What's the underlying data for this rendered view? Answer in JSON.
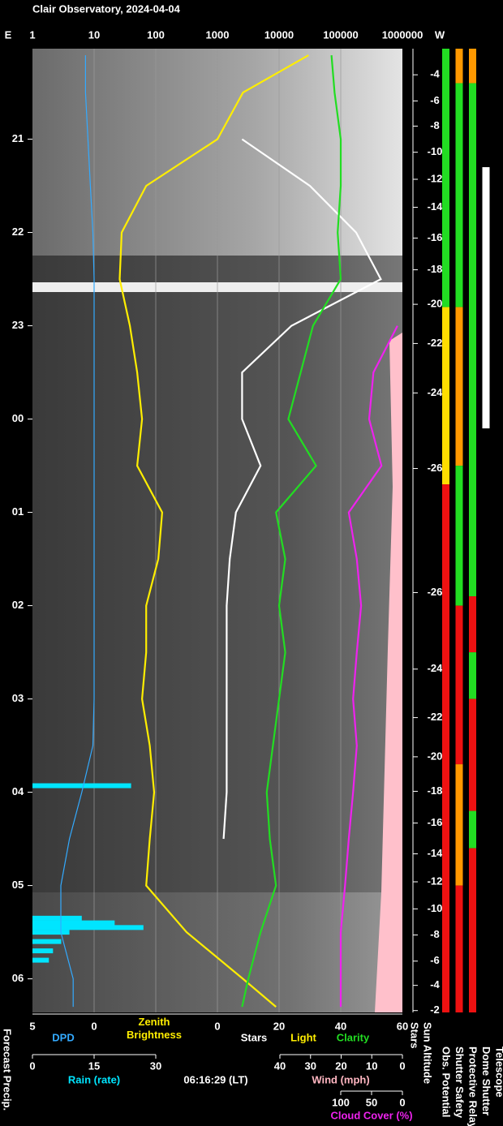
{
  "chart_data": {
    "type": "line",
    "title": "Clair Observatory, 2024-04-04",
    "east_label": "E",
    "west_label": "W",
    "timestamp": "06:16:29 (LT)",
    "forecast_label": "Forecast Precip.",
    "ylim": [
      20.03,
      30.36
    ],
    "yticks": [
      21,
      22,
      23,
      {
        "value": 24,
        "label": "00"
      },
      {
        "value": 25,
        "label": "01"
      },
      {
        "value": 26,
        "label": "02"
      },
      {
        "value": 27,
        "label": "03"
      },
      {
        "value": 28,
        "label": "04"
      },
      {
        "value": 29,
        "label": "05"
      },
      {
        "value": 30,
        "label": "06"
      }
    ],
    "times": [
      20.1,
      20.5,
      21,
      21.5,
      22,
      22.5,
      23,
      23.5,
      24,
      24.5,
      25,
      25.5,
      26,
      26.5,
      27,
      27.5,
      28,
      28.5,
      29,
      29.5,
      30,
      30.3
    ],
    "axes": {
      "brightness": {
        "lim": [
          1,
          1000000
        ],
        "ticks": [
          1,
          10,
          100,
          1000,
          10000,
          100000,
          1000000
        ],
        "log": true,
        "grid": true
      },
      "dpd": {
        "label": "DPD",
        "color": "#33aaff",
        "lim": [
          5,
          0
        ],
        "ticks": [
          5,
          0
        ]
      },
      "zenith": {
        "label": "Zenith Brightness",
        "color": "#ffee00"
      },
      "counts": {
        "lim": [
          0,
          60
        ],
        "ticks": [
          0,
          20,
          40,
          60
        ],
        "labels": [
          {
            "text": "Stars",
            "color": "#ffffff"
          },
          {
            "text": "Light",
            "color": "#ffee00"
          },
          {
            "text": "Clarity",
            "color": "#22dd22"
          }
        ]
      },
      "rain": {
        "label": "Rain (rate)",
        "color": "#00e5ff",
        "lim": [
          0,
          30
        ],
        "ticks": [
          0,
          15,
          30
        ]
      },
      "wind": {
        "label": "Wind (mph)",
        "color": "#ffb6c1",
        "lim": [
          40,
          0
        ],
        "ticks": [
          40,
          30,
          20,
          10,
          0
        ]
      },
      "cloud": {
        "label": "Cloud Cover (%)",
        "color": "#ee22ee",
        "lim": [
          100,
          0
        ],
        "ticks": [
          100,
          50,
          0
        ]
      }
    },
    "series": [
      {
        "name": "Zenith Brightness",
        "color": "#ffee00",
        "axis": "brightness",
        "values": [
          30000,
          2600,
          1000,
          70,
          28,
          26,
          38,
          50,
          60,
          50,
          127,
          110,
          70,
          70,
          60,
          80,
          94,
          80,
          70,
          316,
          2600,
          8900
        ]
      },
      {
        "name": "Stars",
        "color": "#ffffff",
        "axis": "counts",
        "values": [
          null,
          null,
          8,
          30,
          45,
          53,
          24,
          8,
          8,
          14,
          6,
          4,
          3,
          3,
          3,
          3,
          3,
          2,
          null,
          null,
          null,
          null
        ]
      },
      {
        "name": "Clarity",
        "color": "#22dd22",
        "axis": "counts",
        "values": [
          37,
          38,
          40,
          40,
          39,
          40,
          31,
          27,
          23,
          32,
          19,
          22,
          20,
          22,
          20,
          18,
          16,
          17,
          19,
          14,
          10,
          8
        ]
      },
      {
        "name": "Cloud Cover",
        "color": "#ee22ee",
        "axis": "cloud",
        "values": [
          null,
          null,
          null,
          null,
          null,
          null,
          8,
          47,
          54,
          34,
          87,
          74,
          67,
          74,
          80,
          74,
          80,
          87,
          93,
          100,
          100,
          100
        ]
      },
      {
        "name": "DPD",
        "color": "#33aaff",
        "axis": "dpd",
        "values": [
          0.7,
          0.7,
          0.5,
          0.3,
          0.1,
          0,
          0,
          0,
          0,
          0,
          0,
          0,
          0,
          0,
          0,
          0.1,
          1,
          2,
          2.7,
          2.7,
          1.7,
          1.7
        ]
      }
    ],
    "rain_bars": {
      "color": "#00e5ff",
      "times": [
        27.93,
        29.35,
        29.4,
        29.45,
        29.5,
        29.6,
        29.7,
        29.8
      ],
      "values": [
        24,
        12,
        20,
        27,
        9,
        7,
        5,
        4
      ]
    },
    "sun_altitude": {
      "label": "Sun Altitude",
      "ticks": [
        {
          "value": 20.31,
          "label": "-4"
        },
        {
          "value": 20.59,
          "label": "-6"
        },
        {
          "value": 20.86,
          "label": "-8"
        },
        {
          "value": 21.14,
          "label": "-10"
        },
        {
          "value": 21.43,
          "label": "-12"
        },
        {
          "value": 21.73,
          "label": "-14"
        },
        {
          "value": 22.06,
          "label": "-16"
        },
        {
          "value": 22.4,
          "label": "-18"
        },
        {
          "value": 22.77,
          "label": "-20"
        },
        {
          "value": 23.19,
          "label": "-22"
        },
        {
          "value": 23.72,
          "label": "-24"
        },
        {
          "value": 24.53,
          "label": "-26"
        },
        {
          "value": 25.86,
          "label": "-26"
        },
        {
          "value": 26.68,
          "label": "-24"
        },
        {
          "value": 27.2,
          "label": "-22"
        },
        {
          "value": 27.62,
          "label": "-20"
        },
        {
          "value": 27.99,
          "label": "-18"
        },
        {
          "value": 28.33,
          "label": "-16"
        },
        {
          "value": 28.66,
          "label": "-14"
        },
        {
          "value": 28.96,
          "label": "-12"
        },
        {
          "value": 29.25,
          "label": "-10"
        },
        {
          "value": 29.53,
          "label": "-8"
        },
        {
          "value": 29.81,
          "label": "-6"
        },
        {
          "value": 30.07,
          "label": "-4"
        },
        {
          "value": 30.34,
          "label": "-2"
        }
      ]
    },
    "status": [
      {
        "name": "Obs. Potential",
        "segments": [
          {
            "start": 20.03,
            "end": 22.8,
            "color": "#22dd22"
          },
          {
            "start": 22.8,
            "end": 24.7,
            "color": "#ffdd00"
          },
          {
            "start": 24.7,
            "end": 30.36,
            "color": "#ee1111"
          }
        ]
      },
      {
        "name": "Shutter Safety",
        "segments": [
          {
            "start": 20.03,
            "end": 20.4,
            "color": "#ff9900"
          },
          {
            "start": 20.4,
            "end": 22.8,
            "color": "#22dd22"
          },
          {
            "start": 22.8,
            "end": 24.5,
            "color": "#ff9900"
          },
          {
            "start": 24.5,
            "end": 26,
            "color": "#22dd22"
          },
          {
            "start": 26,
            "end": 27.7,
            "color": "#ee1111"
          },
          {
            "start": 27.7,
            "end": 29,
            "color": "#ff9900"
          },
          {
            "start": 29,
            "end": 30.36,
            "color": "#ee1111"
          }
        ]
      },
      {
        "name": "Protective Relay",
        "segments": [
          {
            "start": 20.03,
            "end": 20.4,
            "color": "#ff9900"
          },
          {
            "start": 20.4,
            "end": 25.9,
            "color": "#22dd22"
          },
          {
            "start": 25.9,
            "end": 26.5,
            "color": "#ee1111"
          },
          {
            "start": 26.5,
            "end": 27,
            "color": "#22dd22"
          },
          {
            "start": 27,
            "end": 28.2,
            "color": "#ee1111"
          },
          {
            "start": 28.2,
            "end": 28.6,
            "color": "#22dd22"
          },
          {
            "start": 28.6,
            "end": 30.36,
            "color": "#ee1111"
          }
        ]
      },
      {
        "name": "Dome Shutter",
        "segments": [
          {
            "start": 21.3,
            "end": 24.1,
            "color": "#ffffff"
          }
        ]
      },
      {
        "name": "Telescope",
        "segments": []
      }
    ]
  }
}
